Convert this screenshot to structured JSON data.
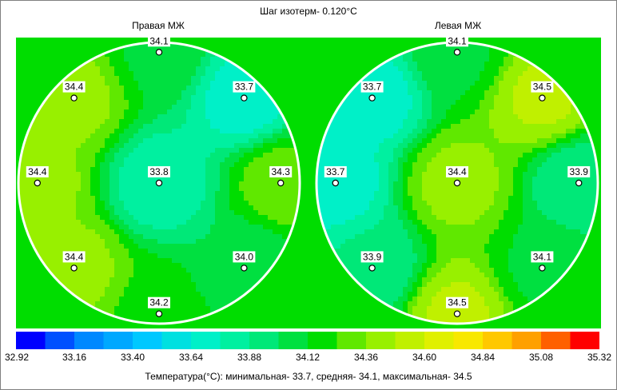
{
  "header": {
    "title": "Шаг изотерм- 0.120°C",
    "right_label": "Правая МЖ",
    "left_label": "Левая МЖ"
  },
  "footer": {
    "summary": "Температура(°C): минимальная-   33.7,  средняя-   34.1,  максимальная-   34.5"
  },
  "colors": {
    "background": "#00dd00",
    "ring": "#ffffff",
    "isotherm": "#000000"
  },
  "chart_data": {
    "type": "heatmap",
    "title": "Шаг изотерм- 0.120°C",
    "isotherm_step": 0.12,
    "units": "°C",
    "scale": {
      "ticks": [
        "32.92",
        "33.16",
        "33.40",
        "33.64",
        "33.88",
        "34.12",
        "34.36",
        "34.60",
        "34.84",
        "35.08",
        "35.32"
      ],
      "min": 32.92,
      "max": 35.32,
      "colors": [
        "#0000ff",
        "#0050ff",
        "#0088ff",
        "#00a8ff",
        "#00c8ff",
        "#00e0e0",
        "#00f0c8",
        "#00f0a0",
        "#00e878",
        "#00e040",
        "#00dd00",
        "#60e800",
        "#98f000",
        "#c0f000",
        "#e0f000",
        "#f8e800",
        "#ffc800",
        "#ffa000",
        "#ff6000",
        "#ff0000"
      ]
    },
    "panels": [
      {
        "name": "Правая МЖ",
        "points": [
          {
            "label": "34.1",
            "value": 34.1,
            "pos": "top"
          },
          {
            "label": "34.4",
            "value": 34.4,
            "pos": "upper-left"
          },
          {
            "label": "33.7",
            "value": 33.7,
            "pos": "upper-right"
          },
          {
            "label": "34.4",
            "value": 34.4,
            "pos": "left"
          },
          {
            "label": "33.8",
            "value": 33.8,
            "pos": "center"
          },
          {
            "label": "34.3",
            "value": 34.3,
            "pos": "right"
          },
          {
            "label": "34.4",
            "value": 34.4,
            "pos": "lower-left"
          },
          {
            "label": "34.0",
            "value": 34.0,
            "pos": "lower-right"
          },
          {
            "label": "34.2",
            "value": 34.2,
            "pos": "bottom"
          }
        ]
      },
      {
        "name": "Левая МЖ",
        "points": [
          {
            "label": "34.1",
            "value": 34.1,
            "pos": "top"
          },
          {
            "label": "33.7",
            "value": 33.7,
            "pos": "upper-left"
          },
          {
            "label": "34.5",
            "value": 34.5,
            "pos": "upper-right"
          },
          {
            "label": "33.7",
            "value": 33.7,
            "pos": "left"
          },
          {
            "label": "34.4",
            "value": 34.4,
            "pos": "center"
          },
          {
            "label": "33.9",
            "value": 33.9,
            "pos": "right"
          },
          {
            "label": "33.9",
            "value": 33.9,
            "pos": "lower-left"
          },
          {
            "label": "34.1",
            "value": 34.1,
            "pos": "lower-right"
          },
          {
            "label": "34.5",
            "value": 34.5,
            "pos": "bottom"
          }
        ]
      }
    ],
    "stats": {
      "min": 33.7,
      "mean": 34.1,
      "max": 34.5
    }
  }
}
